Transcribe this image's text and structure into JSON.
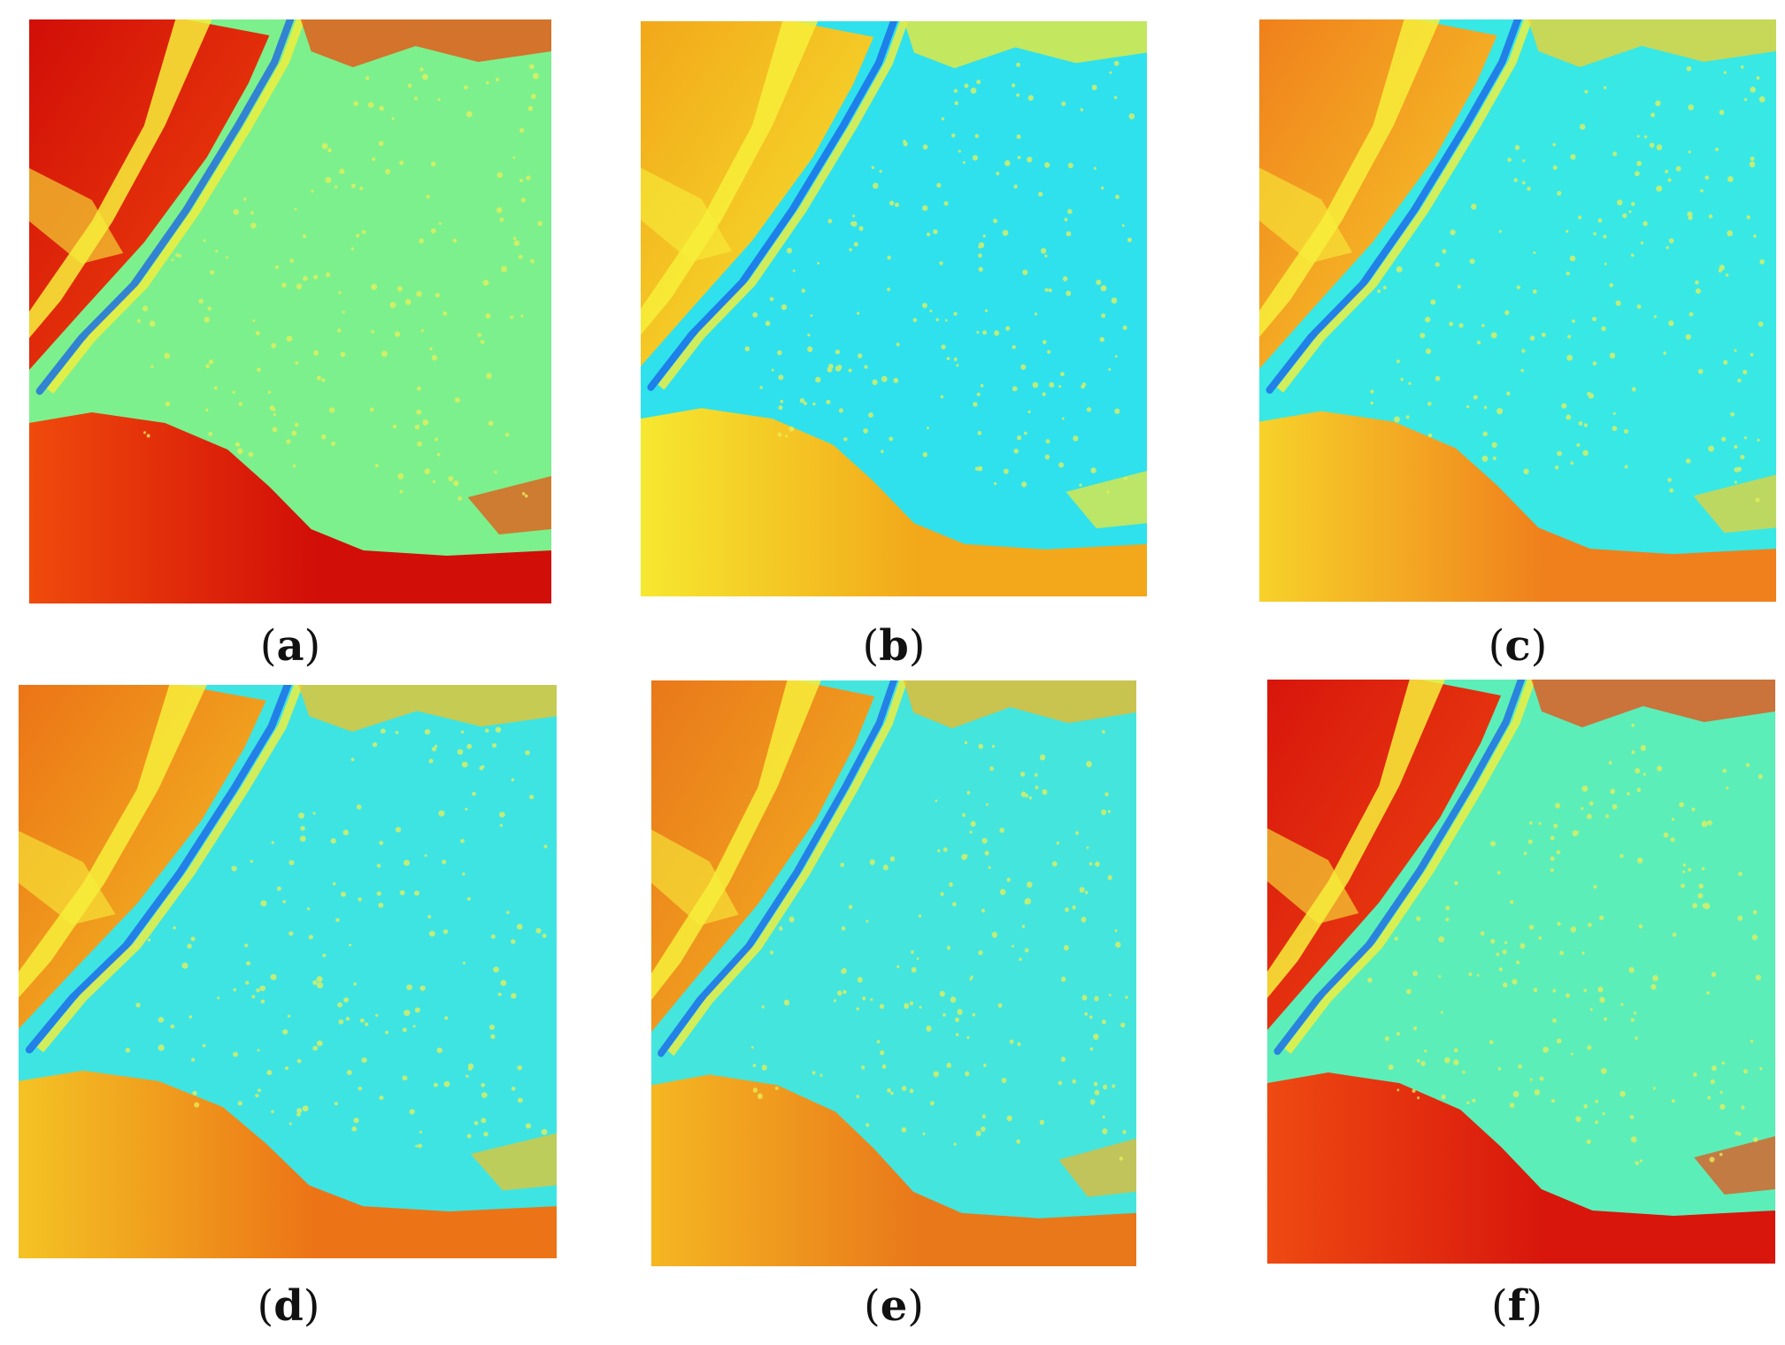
{
  "figure": {
    "panels": [
      {
        "id": "a",
        "caption": "a",
        "warm_color": "#d20e08",
        "warm2_color": "#f04a0c",
        "field_color": "#7cf08c"
      },
      {
        "id": "b",
        "caption": "b",
        "warm_color": "#f2a81a",
        "warm2_color": "#f6e830",
        "field_color": "#2fe1ec"
      },
      {
        "id": "c",
        "caption": "c",
        "warm_color": "#f0801c",
        "warm2_color": "#f7d22a",
        "field_color": "#38e8e4"
      },
      {
        "id": "d",
        "caption": "d",
        "warm_color": "#ec7416",
        "warm2_color": "#f4c324",
        "field_color": "#3ee4e2"
      },
      {
        "id": "e",
        "caption": "e",
        "warm_color": "#e9781a",
        "warm2_color": "#f5b722",
        "field_color": "#44e5dc"
      },
      {
        "id": "f",
        "caption": "f",
        "warm_color": "#d8160c",
        "warm2_color": "#ef4a12",
        "field_color": "#5ceeb8"
      }
    ],
    "colors": {
      "background": "#ffffff",
      "river": "#1a5fe8",
      "speckle": "#e9f05a",
      "ridge": "#f7ef3a"
    }
  }
}
